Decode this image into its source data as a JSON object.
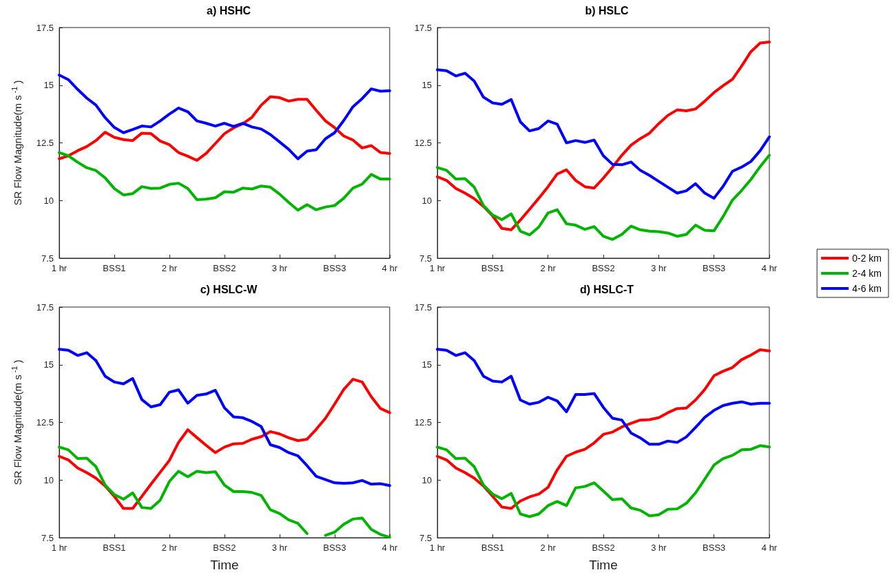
{
  "chart_data": [
    {
      "type": "line",
      "title": "a) HSHC",
      "ylabel": "SR Flow Magnitude(m s$^{-1}$)",
      "legend": false,
      "marker": "none",
      "line_style": "solid",
      "x": [
        1,
        1.083,
        1.167,
        1.25,
        1.333,
        1.417,
        1.5,
        1.583,
        1.667,
        1.75,
        1.833,
        1.917,
        2,
        2.083,
        2.167,
        2.25,
        2.333,
        2.417,
        2.5,
        2.583,
        2.667,
        2.75,
        2.833,
        2.917,
        3,
        3.083,
        3.167,
        3.25,
        3.333,
        3.417,
        3.5,
        3.583,
        3.667,
        3.75,
        3.833,
        3.917,
        4
      ],
      "xlim": [
        1,
        4
      ],
      "xticks": [
        {
          "value": 1,
          "label": "1 hr"
        },
        {
          "value": 1.5,
          "label": "BSS1"
        },
        {
          "value": 2,
          "label": "2 hr"
        },
        {
          "value": 2.5,
          "label": "BSS2"
        },
        {
          "value": 3,
          "label": "3 hr"
        },
        {
          "value": 3.5,
          "label": "BSS3"
        },
        {
          "value": 4,
          "label": "4 hr"
        }
      ],
      "ylim": [
        7.5,
        17.5
      ],
      "yticks": [
        7.5,
        10,
        12.5,
        15,
        17.5
      ],
      "series": [
        {
          "color": "#ff0000",
          "values": [
            11.81,
            11.94,
            12.16,
            12.34,
            12.6,
            12.96,
            12.74,
            12.64,
            12.6,
            12.92,
            12.9,
            12.58,
            12.42,
            12.08,
            11.92,
            11.74,
            12.04,
            12.47,
            12.9,
            13.15,
            13.33,
            13.61,
            14.13,
            14.5,
            14.46,
            14.31,
            14.39,
            14.39,
            13.91,
            13.45,
            13.16,
            12.8,
            12.62,
            12.28,
            12.38,
            12.08,
            12.04
          ]
        },
        {
          "color": "#00b400",
          "values": [
            12.08,
            11.94,
            11.66,
            11.42,
            11.3,
            10.98,
            10.52,
            10.24,
            10.3,
            10.6,
            10.52,
            10.54,
            10.7,
            10.75,
            10.52,
            10.04,
            10.06,
            10.12,
            10.38,
            10.36,
            10.54,
            10.5,
            10.63,
            10.58,
            10.28,
            9.92,
            9.58,
            9.82,
            9.6,
            9.72,
            9.78,
            10.1,
            10.54,
            10.71,
            11.13,
            10.93,
            10.93
          ]
        },
        {
          "color": "#0000ff",
          "values": [
            15.44,
            15.24,
            14.82,
            14.44,
            14.14,
            13.59,
            13.17,
            12.94,
            13.08,
            13.23,
            13.19,
            13.45,
            13.75,
            14.01,
            13.85,
            13.45,
            13.35,
            13.23,
            13.35,
            13.21,
            13.35,
            13.19,
            13.1,
            12.86,
            12.54,
            12.22,
            11.81,
            12.14,
            12.2,
            12.68,
            12.94,
            13.47,
            14.07,
            14.42,
            14.84,
            14.74,
            14.76
          ]
        }
      ]
    },
    {
      "type": "line",
      "title": "b) HSLC",
      "legend": "right",
      "marker": "none",
      "line_style": "solid",
      "x": [
        1,
        1.083,
        1.167,
        1.25,
        1.333,
        1.417,
        1.5,
        1.583,
        1.667,
        1.75,
        1.833,
        1.917,
        2,
        2.083,
        2.167,
        2.25,
        2.333,
        2.417,
        2.5,
        2.583,
        2.667,
        2.75,
        2.833,
        2.917,
        3,
        3.083,
        3.167,
        3.25,
        3.333,
        3.417,
        3.5,
        3.583,
        3.667,
        3.75,
        3.833,
        3.917,
        4
      ],
      "xlim": [
        1,
        4
      ],
      "xticks": [
        {
          "value": 1,
          "label": "1 hr"
        },
        {
          "value": 1.5,
          "label": "BSS1"
        },
        {
          "value": 2,
          "label": "2 hr"
        },
        {
          "value": 2.5,
          "label": "BSS2"
        },
        {
          "value": 3,
          "label": "3 hr"
        },
        {
          "value": 3.5,
          "label": "BSS3"
        },
        {
          "value": 4,
          "label": "4 hr"
        }
      ],
      "ylim": [
        7.5,
        17.5
      ],
      "yticks": [
        7.5,
        10,
        12.5,
        15,
        17.5
      ],
      "series": [
        {
          "name": "0-2 km",
          "color": "#ff0000",
          "values": [
            11.03,
            10.87,
            10.52,
            10.32,
            10.08,
            9.74,
            9.33,
            8.79,
            8.73,
            9.15,
            9.62,
            10.1,
            10.6,
            11.15,
            11.33,
            10.87,
            10.6,
            10.54,
            10.97,
            11.45,
            11.96,
            12.4,
            12.68,
            12.92,
            13.33,
            13.69,
            13.93,
            13.89,
            13.97,
            14.31,
            14.68,
            14.98,
            15.26,
            15.83,
            16.45,
            16.83,
            16.87
          ]
        },
        {
          "name": "2-4 km",
          "color": "#00b400",
          "values": [
            11.43,
            11.31,
            10.93,
            10.95,
            10.58,
            9.78,
            9.37,
            9.17,
            9.42,
            8.67,
            8.51,
            8.85,
            9.46,
            9.6,
            8.99,
            8.93,
            8.75,
            8.87,
            8.45,
            8.31,
            8.53,
            8.89,
            8.73,
            8.67,
            8.65,
            8.59,
            8.45,
            8.53,
            8.93,
            8.71,
            8.69,
            9.31,
            10.02,
            10.44,
            10.91,
            11.47,
            11.96
          ]
        },
        {
          "name": "4-6 km",
          "color": "#0000ff",
          "values": [
            15.67,
            15.63,
            15.4,
            15.52,
            15.18,
            14.48,
            14.23,
            14.17,
            14.38,
            13.41,
            13.02,
            13.12,
            13.45,
            13.31,
            12.5,
            12.6,
            12.52,
            12.62,
            11.94,
            11.57,
            11.55,
            11.67,
            11.31,
            11.09,
            10.83,
            10.58,
            10.32,
            10.42,
            10.73,
            10.32,
            10.1,
            10.62,
            11.27,
            11.45,
            11.69,
            12.16,
            12.76
          ]
        }
      ]
    },
    {
      "type": "line",
      "title": "c) HSLC-W",
      "xlabel": "Time",
      "ylabel": "SR Flow Magnitude(m s$^{-1}$)",
      "legend": false,
      "marker": "none",
      "line_style": "solid",
      "x": [
        1,
        1.083,
        1.167,
        1.25,
        1.333,
        1.417,
        1.5,
        1.583,
        1.667,
        1.75,
        1.833,
        1.917,
        2,
        2.083,
        2.167,
        2.25,
        2.333,
        2.417,
        2.5,
        2.583,
        2.667,
        2.75,
        2.833,
        2.917,
        3,
        3.083,
        3.167,
        3.25,
        3.333,
        3.417,
        3.5,
        3.583,
        3.667,
        3.75,
        3.833,
        3.917,
        4
      ],
      "xlim": [
        1,
        4
      ],
      "xticks": [
        {
          "value": 1,
          "label": "1 hr"
        },
        {
          "value": 1.5,
          "label": "BSS1"
        },
        {
          "value": 2,
          "label": "2 hr"
        },
        {
          "value": 2.5,
          "label": "BSS2"
        },
        {
          "value": 3,
          "label": "3 hr"
        },
        {
          "value": 3.5,
          "label": "BSS3"
        },
        {
          "value": 4,
          "label": "4 hr"
        }
      ],
      "ylim": [
        7.5,
        17.5
      ],
      "yticks": [
        7.5,
        10,
        12.5,
        15,
        17.5
      ],
      "series": [
        {
          "color": "#ff0000",
          "values": [
            11.03,
            10.87,
            10.52,
            10.32,
            10.08,
            9.74,
            9.29,
            8.77,
            8.77,
            9.29,
            9.82,
            10.34,
            10.85,
            11.63,
            12.18,
            11.84,
            11.51,
            11.19,
            11.43,
            11.57,
            11.59,
            11.77,
            11.88,
            12.1,
            12.0,
            11.83,
            11.71,
            11.77,
            12.2,
            12.68,
            13.29,
            13.93,
            14.37,
            14.25,
            13.61,
            13.1,
            12.92
          ]
        },
        {
          "color": "#00b400",
          "values": [
            11.43,
            11.31,
            10.93,
            10.95,
            10.58,
            9.78,
            9.37,
            9.17,
            9.44,
            8.81,
            8.77,
            9.13,
            9.94,
            10.38,
            10.14,
            10.38,
            10.32,
            10.36,
            9.78,
            9.5,
            9.5,
            9.46,
            9.33,
            8.71,
            8.55,
            8.27,
            8.12,
            7.68,
            null,
            7.6,
            7.74,
            8.08,
            8.31,
            8.35,
            7.86,
            7.64,
            7.52
          ]
        },
        {
          "color": "#0000ff",
          "values": [
            15.67,
            15.63,
            15.4,
            15.52,
            15.18,
            14.5,
            14.25,
            14.17,
            14.4,
            13.49,
            13.17,
            13.27,
            13.81,
            13.91,
            13.33,
            13.67,
            13.73,
            13.89,
            13.13,
            12.74,
            12.7,
            12.54,
            12.32,
            11.53,
            11.41,
            11.19,
            11.05,
            10.62,
            10.16,
            10.02,
            9.88,
            9.86,
            9.88,
            9.98,
            9.82,
            9.84,
            9.76
          ]
        }
      ]
    },
    {
      "type": "line",
      "title": "d) HSLC-T",
      "xlabel": "Time",
      "legend": false,
      "marker": "none",
      "line_style": "solid",
      "x": [
        1,
        1.083,
        1.167,
        1.25,
        1.333,
        1.417,
        1.5,
        1.583,
        1.667,
        1.75,
        1.833,
        1.917,
        2,
        2.083,
        2.167,
        2.25,
        2.333,
        2.417,
        2.5,
        2.583,
        2.667,
        2.75,
        2.833,
        2.917,
        3,
        3.083,
        3.167,
        3.25,
        3.333,
        3.417,
        3.5,
        3.583,
        3.667,
        3.75,
        3.833,
        3.917,
        4
      ],
      "xlim": [
        1,
        4
      ],
      "xticks": [
        {
          "value": 1,
          "label": "1 hr"
        },
        {
          "value": 1.5,
          "label": "BSS1"
        },
        {
          "value": 2,
          "label": "2 hr"
        },
        {
          "value": 2.5,
          "label": "BSS2"
        },
        {
          "value": 3,
          "label": "3 hr"
        },
        {
          "value": 3.5,
          "label": "BSS3"
        },
        {
          "value": 4,
          "label": "4 hr"
        }
      ],
      "ylim": [
        7.5,
        17.5
      ],
      "yticks": [
        7.5,
        10,
        12.5,
        15,
        17.5
      ],
      "series": [
        {
          "color": "#ff0000",
          "values": [
            11.03,
            10.87,
            10.52,
            10.32,
            10.08,
            9.74,
            9.29,
            8.83,
            8.77,
            9.09,
            9.27,
            9.39,
            9.68,
            10.44,
            11.03,
            11.21,
            11.33,
            11.61,
            11.98,
            12.08,
            12.3,
            12.46,
            12.6,
            12.62,
            12.7,
            12.92,
            13.1,
            13.12,
            13.47,
            13.93,
            14.52,
            14.72,
            14.88,
            15.22,
            15.42,
            15.65,
            15.6
          ]
        },
        {
          "color": "#00b400",
          "values": [
            11.43,
            11.31,
            10.93,
            10.95,
            10.58,
            9.78,
            9.39,
            9.19,
            9.42,
            8.53,
            8.41,
            8.53,
            8.89,
            9.07,
            8.89,
            9.66,
            9.72,
            9.88,
            9.52,
            9.15,
            9.19,
            8.79,
            8.69,
            8.45,
            8.49,
            8.73,
            8.75,
            8.99,
            9.44,
            10.04,
            10.65,
            10.93,
            11.07,
            11.31,
            11.33,
            11.49,
            11.43
          ]
        },
        {
          "color": "#0000ff",
          "values": [
            15.67,
            15.63,
            15.4,
            15.52,
            15.18,
            14.5,
            14.29,
            14.25,
            14.5,
            13.47,
            13.29,
            13.37,
            13.59,
            13.43,
            12.96,
            13.71,
            13.71,
            13.75,
            13.15,
            12.68,
            12.6,
            12.04,
            11.83,
            11.55,
            11.55,
            11.69,
            11.63,
            11.87,
            12.28,
            12.72,
            13.02,
            13.23,
            13.33,
            13.39,
            13.29,
            13.33,
            13.33
          ]
        }
      ]
    }
  ]
}
